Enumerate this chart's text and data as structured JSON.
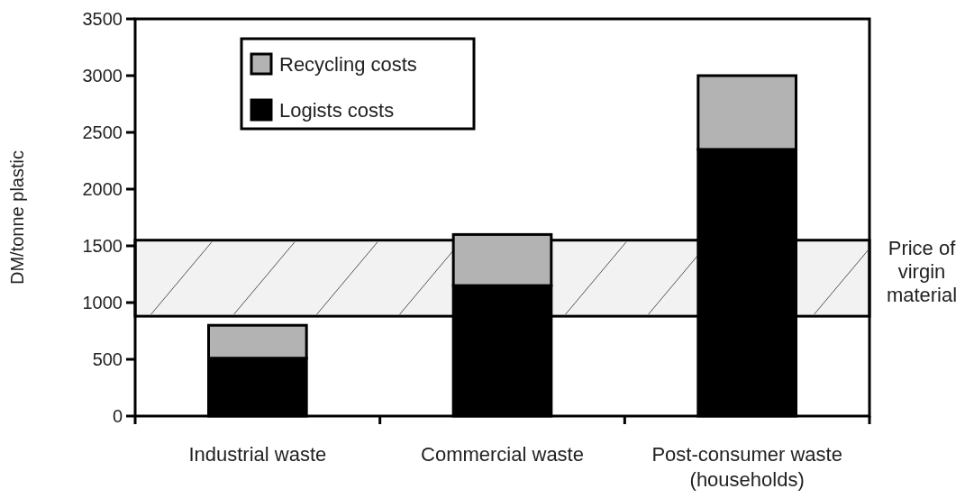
{
  "chart_data": {
    "type": "bar",
    "stacked": true,
    "ylabel": "DM/tonne plastic",
    "categories": [
      "Industrial waste",
      "Commercial waste",
      "Post-consumer waste\n(households)"
    ],
    "series": [
      {
        "name": "Logists costs",
        "color": "#000000",
        "values": [
          510,
          1150,
          2350
        ]
      },
      {
        "name": "Recycling costs",
        "color": "#b3b3b3",
        "values": [
          290,
          450,
          650
        ]
      }
    ],
    "ylim": [
      0,
      3500
    ],
    "yticks": [
      0,
      500,
      1000,
      1500,
      2000,
      2500,
      3000,
      3500
    ],
    "bands": [
      {
        "axis": "y",
        "from": 880,
        "to": 1550,
        "label": "Price of\nvirgin\nmaterial"
      }
    ],
    "legend": "top left",
    "grid": false
  }
}
